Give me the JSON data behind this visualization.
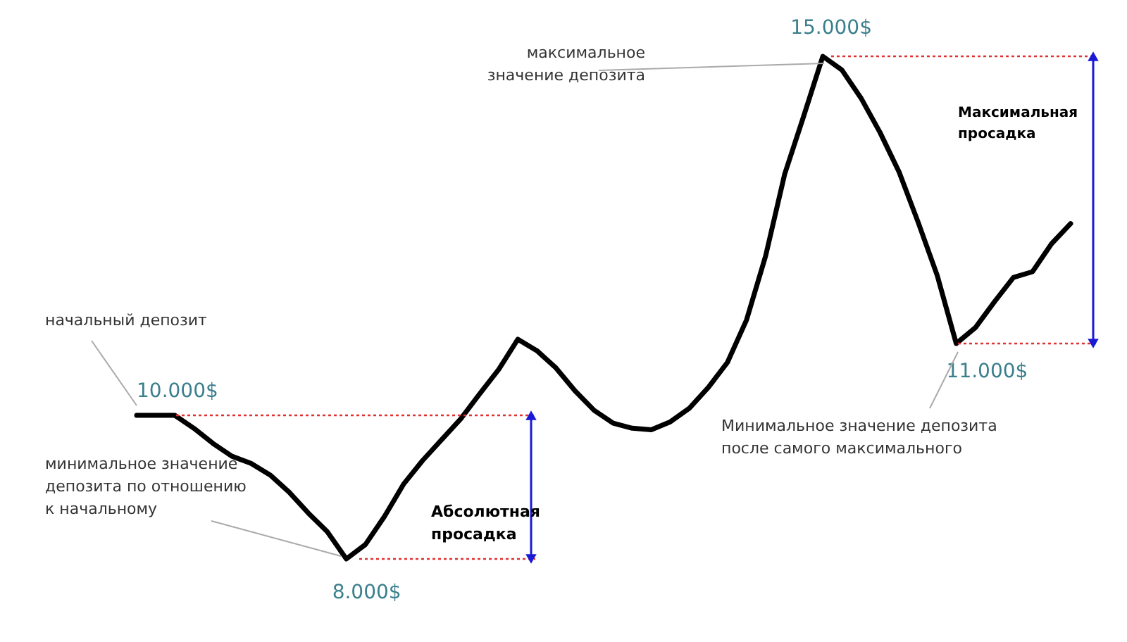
{
  "chart_data": {
    "type": "line",
    "categories": [
      null,
      null,
      null,
      null,
      null,
      null,
      null,
      null,
      null,
      null,
      null,
      null,
      null,
      null,
      null,
      null,
      null,
      null,
      null,
      null,
      null,
      null,
      null,
      null,
      null,
      null,
      null,
      null,
      null,
      null,
      null,
      null,
      null,
      null,
      null,
      null,
      null,
      null,
      null,
      null,
      null,
      null,
      null,
      null,
      null,
      null,
      null,
      null,
      null,
      null
    ],
    "series": [
      {
        "color": "#000000",
        "values": [
          10000,
          10000,
          10000,
          9820,
          9610,
          9430,
          9330,
          9170,
          8930,
          8640,
          8380,
          8000,
          8200,
          8590,
          9040,
          9370,
          9660,
          9950,
          10300,
          10640,
          11060,
          10900,
          10660,
          10340,
          10070,
          9890,
          9820,
          9800,
          9910,
          10100,
          10390,
          10740,
          11330,
          12220,
          13360,
          14170,
          15000,
          14810,
          14420,
          13940,
          13390,
          12690,
          11950,
          11000,
          11220,
          11580,
          11920,
          12000,
          12390,
          12670
        ],
        "value_labels": [
          "10.000$",
          null,
          null,
          null,
          null,
          null,
          null,
          null,
          null,
          null,
          null,
          "8.000$",
          null,
          null,
          null,
          null,
          null,
          null,
          null,
          null,
          null,
          null,
          null,
          null,
          null,
          null,
          null,
          null,
          null,
          null,
          null,
          null,
          null,
          null,
          null,
          null,
          "15.000$",
          null,
          null,
          null,
          null,
          null,
          null,
          "11.000$",
          null,
          null,
          null,
          null,
          null,
          null
        ]
      }
    ],
    "ref_lines": [
      {
        "axis": "y",
        "value": 10000,
        "color": "#e03030",
        "line_style": "dotted"
      },
      {
        "axis": "y",
        "value": 8000,
        "color": "#e03030",
        "line_style": "dotted"
      },
      {
        "axis": "y",
        "value": 15000,
        "color": "#e03030",
        "line_style": "dotted"
      },
      {
        "axis": "y",
        "value": 11000,
        "color": "#e03030",
        "line_style": "dotted"
      }
    ],
    "annotations": [
      "начальный депозит",
      "минимальное значение\nдепозита по отношению\nк начальному",
      "Абсолютная\nпросадка",
      "максимальное\nзначение депозита",
      "Максимальная\nпросадка",
      "Минимальное значение депозита\nпосле самого максимального"
    ]
  }
}
